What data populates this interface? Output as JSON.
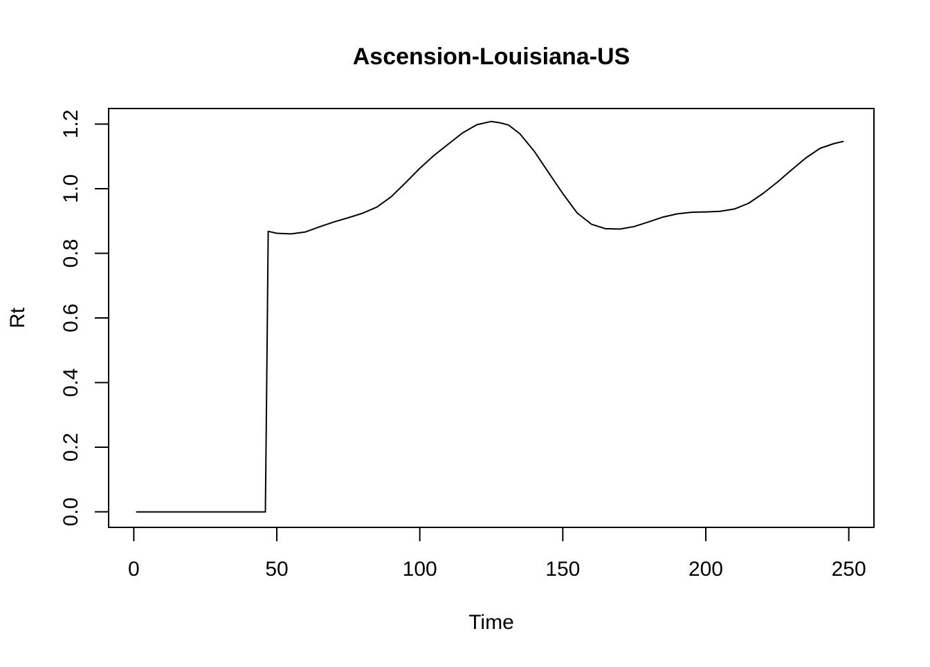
{
  "chart_data": {
    "type": "line",
    "title": "Ascension-Louisiana-US",
    "xlabel": "Time",
    "ylabel": "Rt",
    "xlim": [
      -8.8,
      258.8
    ],
    "ylim": [
      -0.048,
      1.248
    ],
    "x_ticks": [
      0,
      50,
      100,
      150,
      200,
      250
    ],
    "y_ticks": [
      0.0,
      0.2,
      0.4,
      0.6,
      0.8,
      1.0,
      1.2
    ],
    "x_tick_labels": [
      "0",
      "50",
      "100",
      "150",
      "200",
      "250"
    ],
    "y_tick_labels": [
      "0.0",
      "0.2",
      "0.4",
      "0.6",
      "0.8",
      "1.0",
      "1.2"
    ],
    "grid": false,
    "legend": "none",
    "line_color": "#000000",
    "series": [
      {
        "x": [
          1,
          10,
          20,
          30,
          40,
          45,
          46,
          46.5,
          47,
          50,
          55,
          60,
          65,
          70,
          75,
          80,
          85,
          90,
          95,
          100,
          105,
          110,
          115,
          120,
          125,
          128,
          131,
          135,
          140,
          145,
          150,
          155,
          160,
          165,
          170,
          175,
          180,
          185,
          190,
          195,
          200,
          205,
          210,
          215,
          220,
          225,
          230,
          235,
          240,
          245,
          248
        ],
        "y": [
          0,
          0,
          0,
          0,
          0,
          0,
          0,
          0.43,
          0.868,
          0.862,
          0.86,
          0.866,
          0.882,
          0.897,
          0.91,
          0.924,
          0.943,
          0.975,
          1.018,
          1.063,
          1.103,
          1.138,
          1.173,
          1.198,
          1.208,
          1.204,
          1.197,
          1.17,
          1.116,
          1.05,
          0.985,
          0.925,
          0.89,
          0.876,
          0.875,
          0.883,
          0.897,
          0.912,
          0.922,
          0.927,
          0.928,
          0.93,
          0.937,
          0.955,
          0.985,
          1.02,
          1.058,
          1.095,
          1.125,
          1.14,
          1.146
        ]
      }
    ]
  }
}
